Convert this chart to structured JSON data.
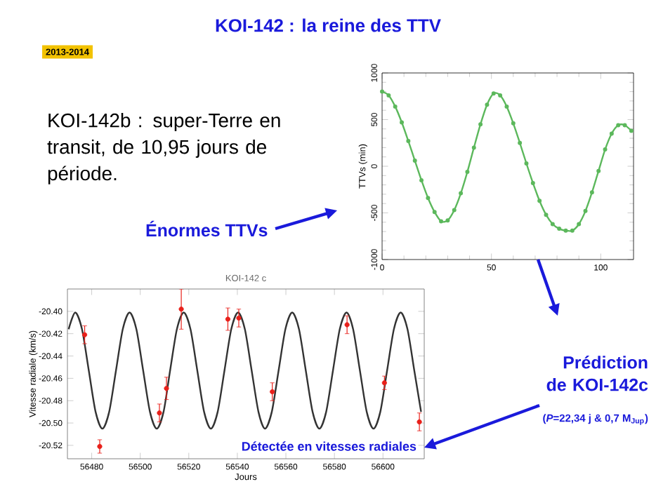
{
  "chart_data": [
    {
      "type": "other",
      "title": "KOI-142 : la reine des TTV",
      "annotations": [
        "2013-2014",
        "KOI-142b : super-Terre en transit, de 10,95 jours de période.",
        "Énormes TTVs",
        "Prédiction de KOI-142c",
        "(*P*=22,34 j & 0,7 M$_{Jup}$)",
        "Détectée en vitesses radiales"
      ]
    },
    {
      "type": "line",
      "ylabel": "TTVs (min)",
      "xlim": [
        0,
        115
      ],
      "ylim": [
        -1000,
        1000
      ],
      "xticks": [
        0,
        50,
        100
      ],
      "yticks": [
        -1000,
        -500,
        0,
        500,
        1000
      ],
      "marker": "circle",
      "series": [
        {
          "color": "#5cb85c",
          "x": [
            0,
            3,
            6,
            9,
            12,
            15,
            18,
            21,
            24,
            27,
            30,
            33,
            36,
            39,
            42,
            45,
            48,
            51,
            54,
            57,
            60,
            63,
            66,
            69,
            72,
            75,
            78,
            81,
            84,
            87,
            90,
            93,
            96,
            99,
            102,
            105,
            108,
            111,
            114
          ],
          "values": [
            800,
            760,
            640,
            470,
            270,
            60,
            -150,
            -340,
            -490,
            -590,
            -580,
            -470,
            -290,
            -60,
            200,
            450,
            660,
            780,
            760,
            640,
            460,
            250,
            30,
            -180,
            -370,
            -520,
            -620,
            -670,
            -690,
            -690,
            -620,
            -480,
            -280,
            -50,
            180,
            350,
            440,
            440,
            380
          ]
        }
      ]
    },
    {
      "type": "scatter",
      "title": "KOI-142 c",
      "xlabel": "Jours",
      "ylabel": "Vitesse radiale (km/s)",
      "xlim": [
        56470,
        56617
      ],
      "ylim": [
        -20.532,
        -20.38
      ],
      "xticks": [
        56480,
        56500,
        56520,
        56540,
        56560,
        56580,
        56600
      ],
      "yticks": [
        {
          "value": -20.4,
          "label": "-20.40"
        },
        {
          "value": -20.42,
          "label": "-20.42"
        },
        {
          "value": -20.44,
          "label": "-20.44"
        },
        {
          "value": -20.46,
          "label": "-20.46"
        },
        {
          "value": -20.48,
          "label": "-20.48"
        },
        {
          "value": -20.5,
          "label": "-20.50"
        },
        {
          "value": -20.52,
          "label": "-20.52"
        }
      ],
      "series": [
        {
          "type": "line",
          "marker": "none",
          "color": "#333333",
          "x": [
            56470.5,
            56473.2,
            56476.0,
            56478.8,
            56481.6,
            56484.4,
            56487.2,
            56490.0,
            56492.8,
            56495.6,
            56498.4,
            56501.2,
            56504.0,
            56506.8,
            56509.6,
            56512.3,
            56515.1,
            56517.9,
            56520.7,
            56523.5,
            56526.3,
            56529.1,
            56531.9,
            56534.7,
            56537.5,
            56540.3,
            56543.1,
            56545.9,
            56548.7,
            56551.4,
            56554.2,
            56557.0,
            56559.8,
            56562.6,
            56565.4,
            56568.2,
            56571.0,
            56573.8,
            56576.6,
            56579.4,
            56582.2,
            56585.0,
            56587.7,
            56590.5,
            56593.3,
            56596.1,
            56598.9,
            56601.7,
            56604.5,
            56607.3,
            56610.1,
            56612.9,
            56615.7
          ],
          "values": [
            -20.416,
            -20.401,
            -20.416,
            -20.453,
            -20.49,
            -20.505,
            -20.49,
            -20.453,
            -20.416,
            -20.401,
            -20.416,
            -20.453,
            -20.49,
            -20.505,
            -20.49,
            -20.453,
            -20.416,
            -20.401,
            -20.416,
            -20.453,
            -20.49,
            -20.505,
            -20.49,
            -20.453,
            -20.416,
            -20.401,
            -20.416,
            -20.453,
            -20.49,
            -20.505,
            -20.49,
            -20.453,
            -20.416,
            -20.401,
            -20.416,
            -20.453,
            -20.49,
            -20.505,
            -20.49,
            -20.453,
            -20.416,
            -20.401,
            -20.416,
            -20.453,
            -20.49,
            -20.505,
            -20.49,
            -20.453,
            -20.416,
            -20.401,
            -20.416,
            -20.453,
            -20.49
          ]
        },
        {
          "type": "scatter",
          "marker": "circle",
          "color": "#e8201a",
          "x": [
            56477.1,
            56483.3,
            56507.9,
            56510.8,
            56516.9,
            56536.1,
            56540.6,
            56554.4,
            56585.2,
            56600.6,
            56615.0
          ],
          "values": [
            -20.421,
            -20.521,
            -20.491,
            -20.469,
            -20.398,
            -20.407,
            -20.406,
            -20.472,
            -20.412,
            -20.464,
            -20.499
          ],
          "errors": [
            0.008,
            0.006,
            0.008,
            0.01,
            0.018,
            0.01,
            0.008,
            0.008,
            0.008,
            0.006,
            0.008
          ]
        }
      ]
    }
  ]
}
